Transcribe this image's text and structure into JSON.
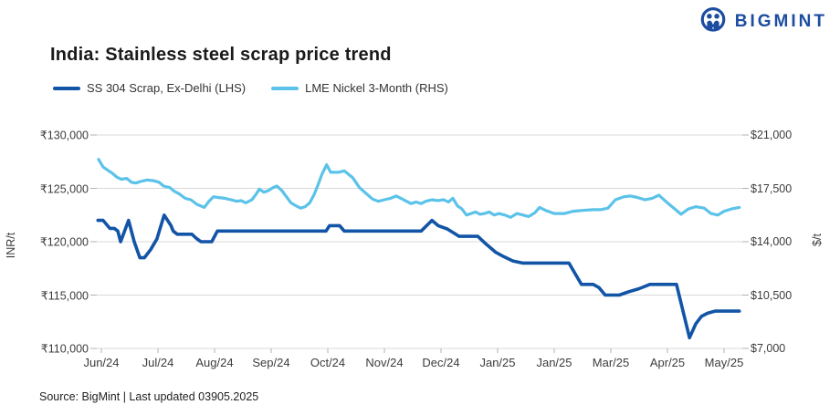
{
  "header": {
    "logo_text": "BIGMINT",
    "logo_color": "#1C4DA1"
  },
  "title": "India: Stainless steel scrap price trend",
  "legend": [
    {
      "label": "SS 304 Scrap, Ex-Delhi (LHS)",
      "color": "#1254A6"
    },
    {
      "label": "LME Nickel 3-Month (RHS)",
      "color": "#5BC2E9"
    }
  ],
  "footer": {
    "source": "Source: BigMint | Last updated 03905.2025"
  },
  "colors": {
    "grid": "#D9D9D9",
    "axis_tick": "#B0B0B0",
    "axis_text": "#3C3C3C"
  },
  "chart_data": {
    "type": "line",
    "title": "India: Stainless steel scrap price trend",
    "grid": true,
    "legend_position": "top-left",
    "x_ticks": [
      "Jun/24",
      "Jul/24",
      "Aug/24",
      "Sep/24",
      "Oct/24",
      "Nov/24",
      "Dec/24",
      "Jan/25",
      "Jan/25",
      "Mar/25",
      "Apr/25",
      "May/25"
    ],
    "left_axis": {
      "label": "INR/t",
      "min": 110000,
      "max": 130000,
      "ticks": [
        "₹130,000",
        "₹125,000",
        "₹120,000",
        "₹115,000",
        "₹110,000"
      ]
    },
    "right_axis": {
      "label": "$/t",
      "min": 7000,
      "max": 21000,
      "ticks": [
        "$21,000",
        "$17,500",
        "$14,000",
        "$10,500",
        "$7,000"
      ]
    },
    "series": [
      {
        "name": "SS 304 Scrap, Ex-Delhi (LHS)",
        "axis": "left",
        "color": "#1254A6",
        "unit": "INR/t",
        "points": [
          [
            -0.06,
            122000
          ],
          [
            0.03,
            122000
          ],
          [
            0.15,
            121250
          ],
          [
            0.23,
            121250
          ],
          [
            0.29,
            121000
          ],
          [
            0.34,
            120000
          ],
          [
            0.48,
            122000
          ],
          [
            0.58,
            120000
          ],
          [
            0.68,
            118500
          ],
          [
            0.76,
            118500
          ],
          [
            0.87,
            119250
          ],
          [
            0.98,
            120250
          ],
          [
            1.11,
            122500
          ],
          [
            1.23,
            121500
          ],
          [
            1.27,
            121000
          ],
          [
            1.34,
            120700
          ],
          [
            1.6,
            120700
          ],
          [
            1.68,
            120300
          ],
          [
            1.76,
            120000
          ],
          [
            1.95,
            120000
          ],
          [
            2.05,
            121000
          ],
          [
            3.97,
            121000
          ],
          [
            4.03,
            121500
          ],
          [
            4.21,
            121500
          ],
          [
            4.29,
            121000
          ],
          [
            5.65,
            121000
          ],
          [
            5.84,
            122000
          ],
          [
            5.95,
            121500
          ],
          [
            6.11,
            121200
          ],
          [
            6.23,
            120800
          ],
          [
            6.32,
            120500
          ],
          [
            6.65,
            120500
          ],
          [
            6.79,
            119800
          ],
          [
            6.97,
            119000
          ],
          [
            7.11,
            118600
          ],
          [
            7.27,
            118200
          ],
          [
            7.44,
            118000
          ],
          [
            8.26,
            118000
          ],
          [
            8.48,
            116000
          ],
          [
            8.69,
            116000
          ],
          [
            8.79,
            115700
          ],
          [
            8.9,
            115000
          ],
          [
            9.15,
            115000
          ],
          [
            9.31,
            115300
          ],
          [
            9.5,
            115600
          ],
          [
            9.69,
            116000
          ],
          [
            10.16,
            116000
          ],
          [
            10.39,
            111000
          ],
          [
            10.5,
            112300
          ],
          [
            10.6,
            113000
          ],
          [
            10.71,
            113300
          ],
          [
            10.84,
            113500
          ],
          [
            11.27,
            113500
          ]
        ]
      },
      {
        "name": "LME Nickel 3-Month (RHS)",
        "axis": "right",
        "color": "#5BC2E9",
        "unit": "$/t",
        "points": [
          [
            -0.05,
            19400
          ],
          [
            0.03,
            18900
          ],
          [
            0.11,
            18700
          ],
          [
            0.19,
            18500
          ],
          [
            0.27,
            18250
          ],
          [
            0.35,
            18100
          ],
          [
            0.45,
            18150
          ],
          [
            0.53,
            17900
          ],
          [
            0.61,
            17850
          ],
          [
            0.69,
            17950
          ],
          [
            0.81,
            18050
          ],
          [
            0.92,
            18000
          ],
          [
            1.02,
            17900
          ],
          [
            1.1,
            17650
          ],
          [
            1.21,
            17550
          ],
          [
            1.29,
            17300
          ],
          [
            1.37,
            17150
          ],
          [
            1.48,
            16850
          ],
          [
            1.58,
            16750
          ],
          [
            1.69,
            16450
          ],
          [
            1.82,
            16250
          ],
          [
            1.9,
            16650
          ],
          [
            1.98,
            16950
          ],
          [
            2.06,
            16900
          ],
          [
            2.18,
            16850
          ],
          [
            2.29,
            16750
          ],
          [
            2.39,
            16650
          ],
          [
            2.47,
            16700
          ],
          [
            2.55,
            16550
          ],
          [
            2.66,
            16750
          ],
          [
            2.74,
            17150
          ],
          [
            2.79,
            17450
          ],
          [
            2.87,
            17250
          ],
          [
            2.95,
            17350
          ],
          [
            3.03,
            17550
          ],
          [
            3.1,
            17650
          ],
          [
            3.19,
            17350
          ],
          [
            3.27,
            16950
          ],
          [
            3.35,
            16550
          ],
          [
            3.44,
            16350
          ],
          [
            3.52,
            16200
          ],
          [
            3.6,
            16300
          ],
          [
            3.68,
            16550
          ],
          [
            3.76,
            17100
          ],
          [
            3.82,
            17650
          ],
          [
            3.9,
            18450
          ],
          [
            3.98,
            19050
          ],
          [
            4.05,
            18550
          ],
          [
            4.19,
            18550
          ],
          [
            4.29,
            18650
          ],
          [
            4.44,
            18200
          ],
          [
            4.56,
            17550
          ],
          [
            4.68,
            17150
          ],
          [
            4.79,
            16800
          ],
          [
            4.89,
            16650
          ],
          [
            5.0,
            16750
          ],
          [
            5.11,
            16850
          ],
          [
            5.21,
            17000
          ],
          [
            5.29,
            16850
          ],
          [
            5.39,
            16650
          ],
          [
            5.47,
            16500
          ],
          [
            5.56,
            16600
          ],
          [
            5.65,
            16500
          ],
          [
            5.73,
            16650
          ],
          [
            5.84,
            16750
          ],
          [
            5.94,
            16700
          ],
          [
            6.05,
            16750
          ],
          [
            6.13,
            16600
          ],
          [
            6.21,
            16850
          ],
          [
            6.29,
            16350
          ],
          [
            6.37,
            16150
          ],
          [
            6.45,
            15750
          ],
          [
            6.53,
            15850
          ],
          [
            6.61,
            15950
          ],
          [
            6.69,
            15800
          ],
          [
            6.77,
            15850
          ],
          [
            6.85,
            15950
          ],
          [
            6.94,
            15750
          ],
          [
            7.02,
            15850
          ],
          [
            7.13,
            15750
          ],
          [
            7.23,
            15600
          ],
          [
            7.34,
            15850
          ],
          [
            7.45,
            15750
          ],
          [
            7.55,
            15650
          ],
          [
            7.66,
            15900
          ],
          [
            7.74,
            16250
          ],
          [
            7.85,
            16050
          ],
          [
            8.0,
            15850
          ],
          [
            8.18,
            15850
          ],
          [
            8.34,
            16000
          ],
          [
            8.5,
            16050
          ],
          [
            8.69,
            16100
          ],
          [
            8.82,
            16100
          ],
          [
            8.95,
            16200
          ],
          [
            9.08,
            16750
          ],
          [
            9.23,
            16950
          ],
          [
            9.35,
            17000
          ],
          [
            9.47,
            16900
          ],
          [
            9.6,
            16750
          ],
          [
            9.73,
            16850
          ],
          [
            9.85,
            17050
          ],
          [
            10.0,
            16550
          ],
          [
            10.13,
            16150
          ],
          [
            10.24,
            15800
          ],
          [
            10.37,
            16150
          ],
          [
            10.5,
            16300
          ],
          [
            10.65,
            16200
          ],
          [
            10.77,
            15850
          ],
          [
            10.89,
            15750
          ],
          [
            11.0,
            16000
          ],
          [
            11.13,
            16150
          ],
          [
            11.27,
            16250
          ]
        ]
      }
    ]
  }
}
